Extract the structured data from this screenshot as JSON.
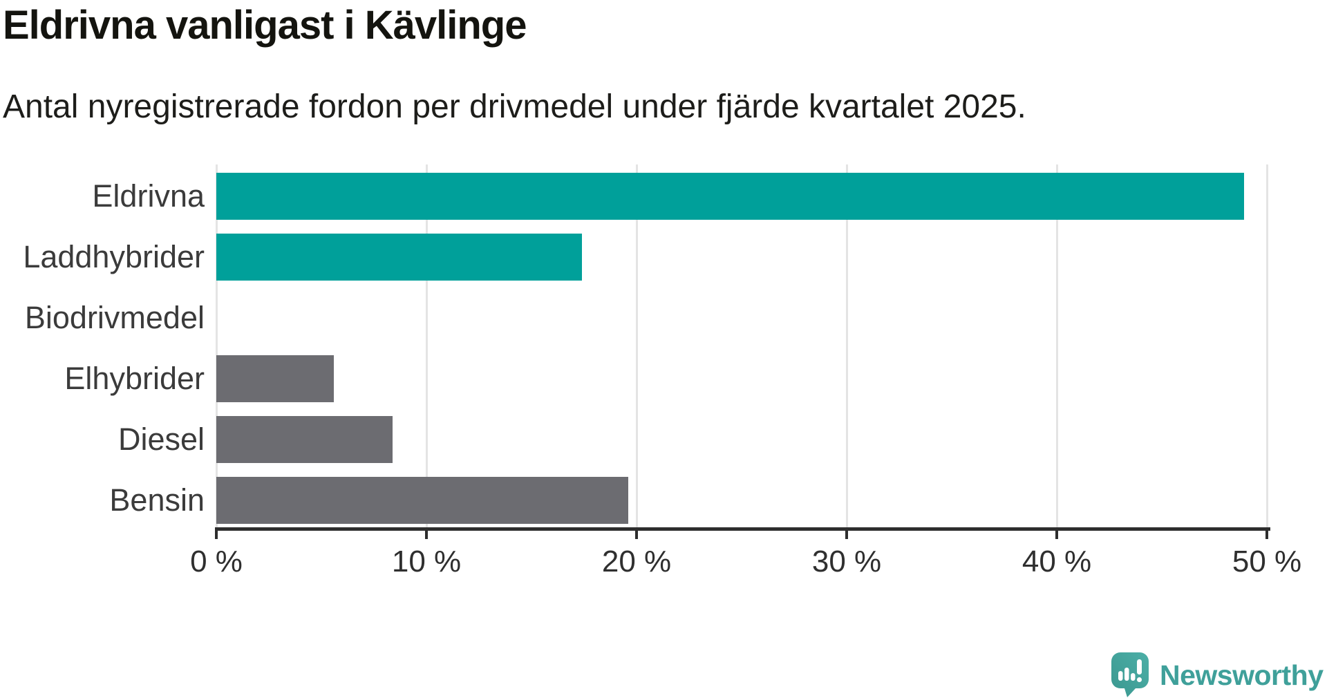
{
  "title": "Eldrivna vanligast i Kävlinge",
  "subtitle": "Antal nyregistrerade fordon per drivmedel under fjärde kvartalet 2025.",
  "chart_data": {
    "type": "bar",
    "orientation": "horizontal",
    "title": "Eldrivna vanligast i Kävlinge",
    "subtitle": "Antal nyregistrerade fordon per drivmedel under fjärde kvartalet 2025.",
    "categories": [
      "Eldrivna",
      "Laddhybrider",
      "Biodrivmedel",
      "Elhybrider",
      "Diesel",
      "Bensin"
    ],
    "values": [
      48.9,
      17.4,
      0,
      5.6,
      8.4,
      19.6
    ],
    "unit": "%",
    "xlabel": "",
    "ylabel": "",
    "xlim": [
      0,
      50
    ],
    "x_tick_labels": [
      "0 %",
      "10 %",
      "20 %",
      "30 %",
      "40 %",
      "50 %"
    ],
    "x_tick_values": [
      0,
      10,
      20,
      30,
      40,
      50
    ],
    "grid": true,
    "legend": false,
    "bar_colors": [
      "#00a09a",
      "#00a09a",
      "#6c6c71",
      "#6c6c71",
      "#6c6c71",
      "#6c6c71"
    ]
  },
  "colors": {
    "accent_teal": "#00a09a",
    "neutral_gray": "#6c6c71",
    "gridline": "#e4e4e4",
    "axis": "#2e2e2e",
    "title_text": "#14140f",
    "label_text": "#3b3b3b",
    "brand_teal": "#3fa09a"
  },
  "branding": {
    "name": "Newsworthy",
    "logo_icon": "speech-bubble-bar-chart-icon"
  }
}
